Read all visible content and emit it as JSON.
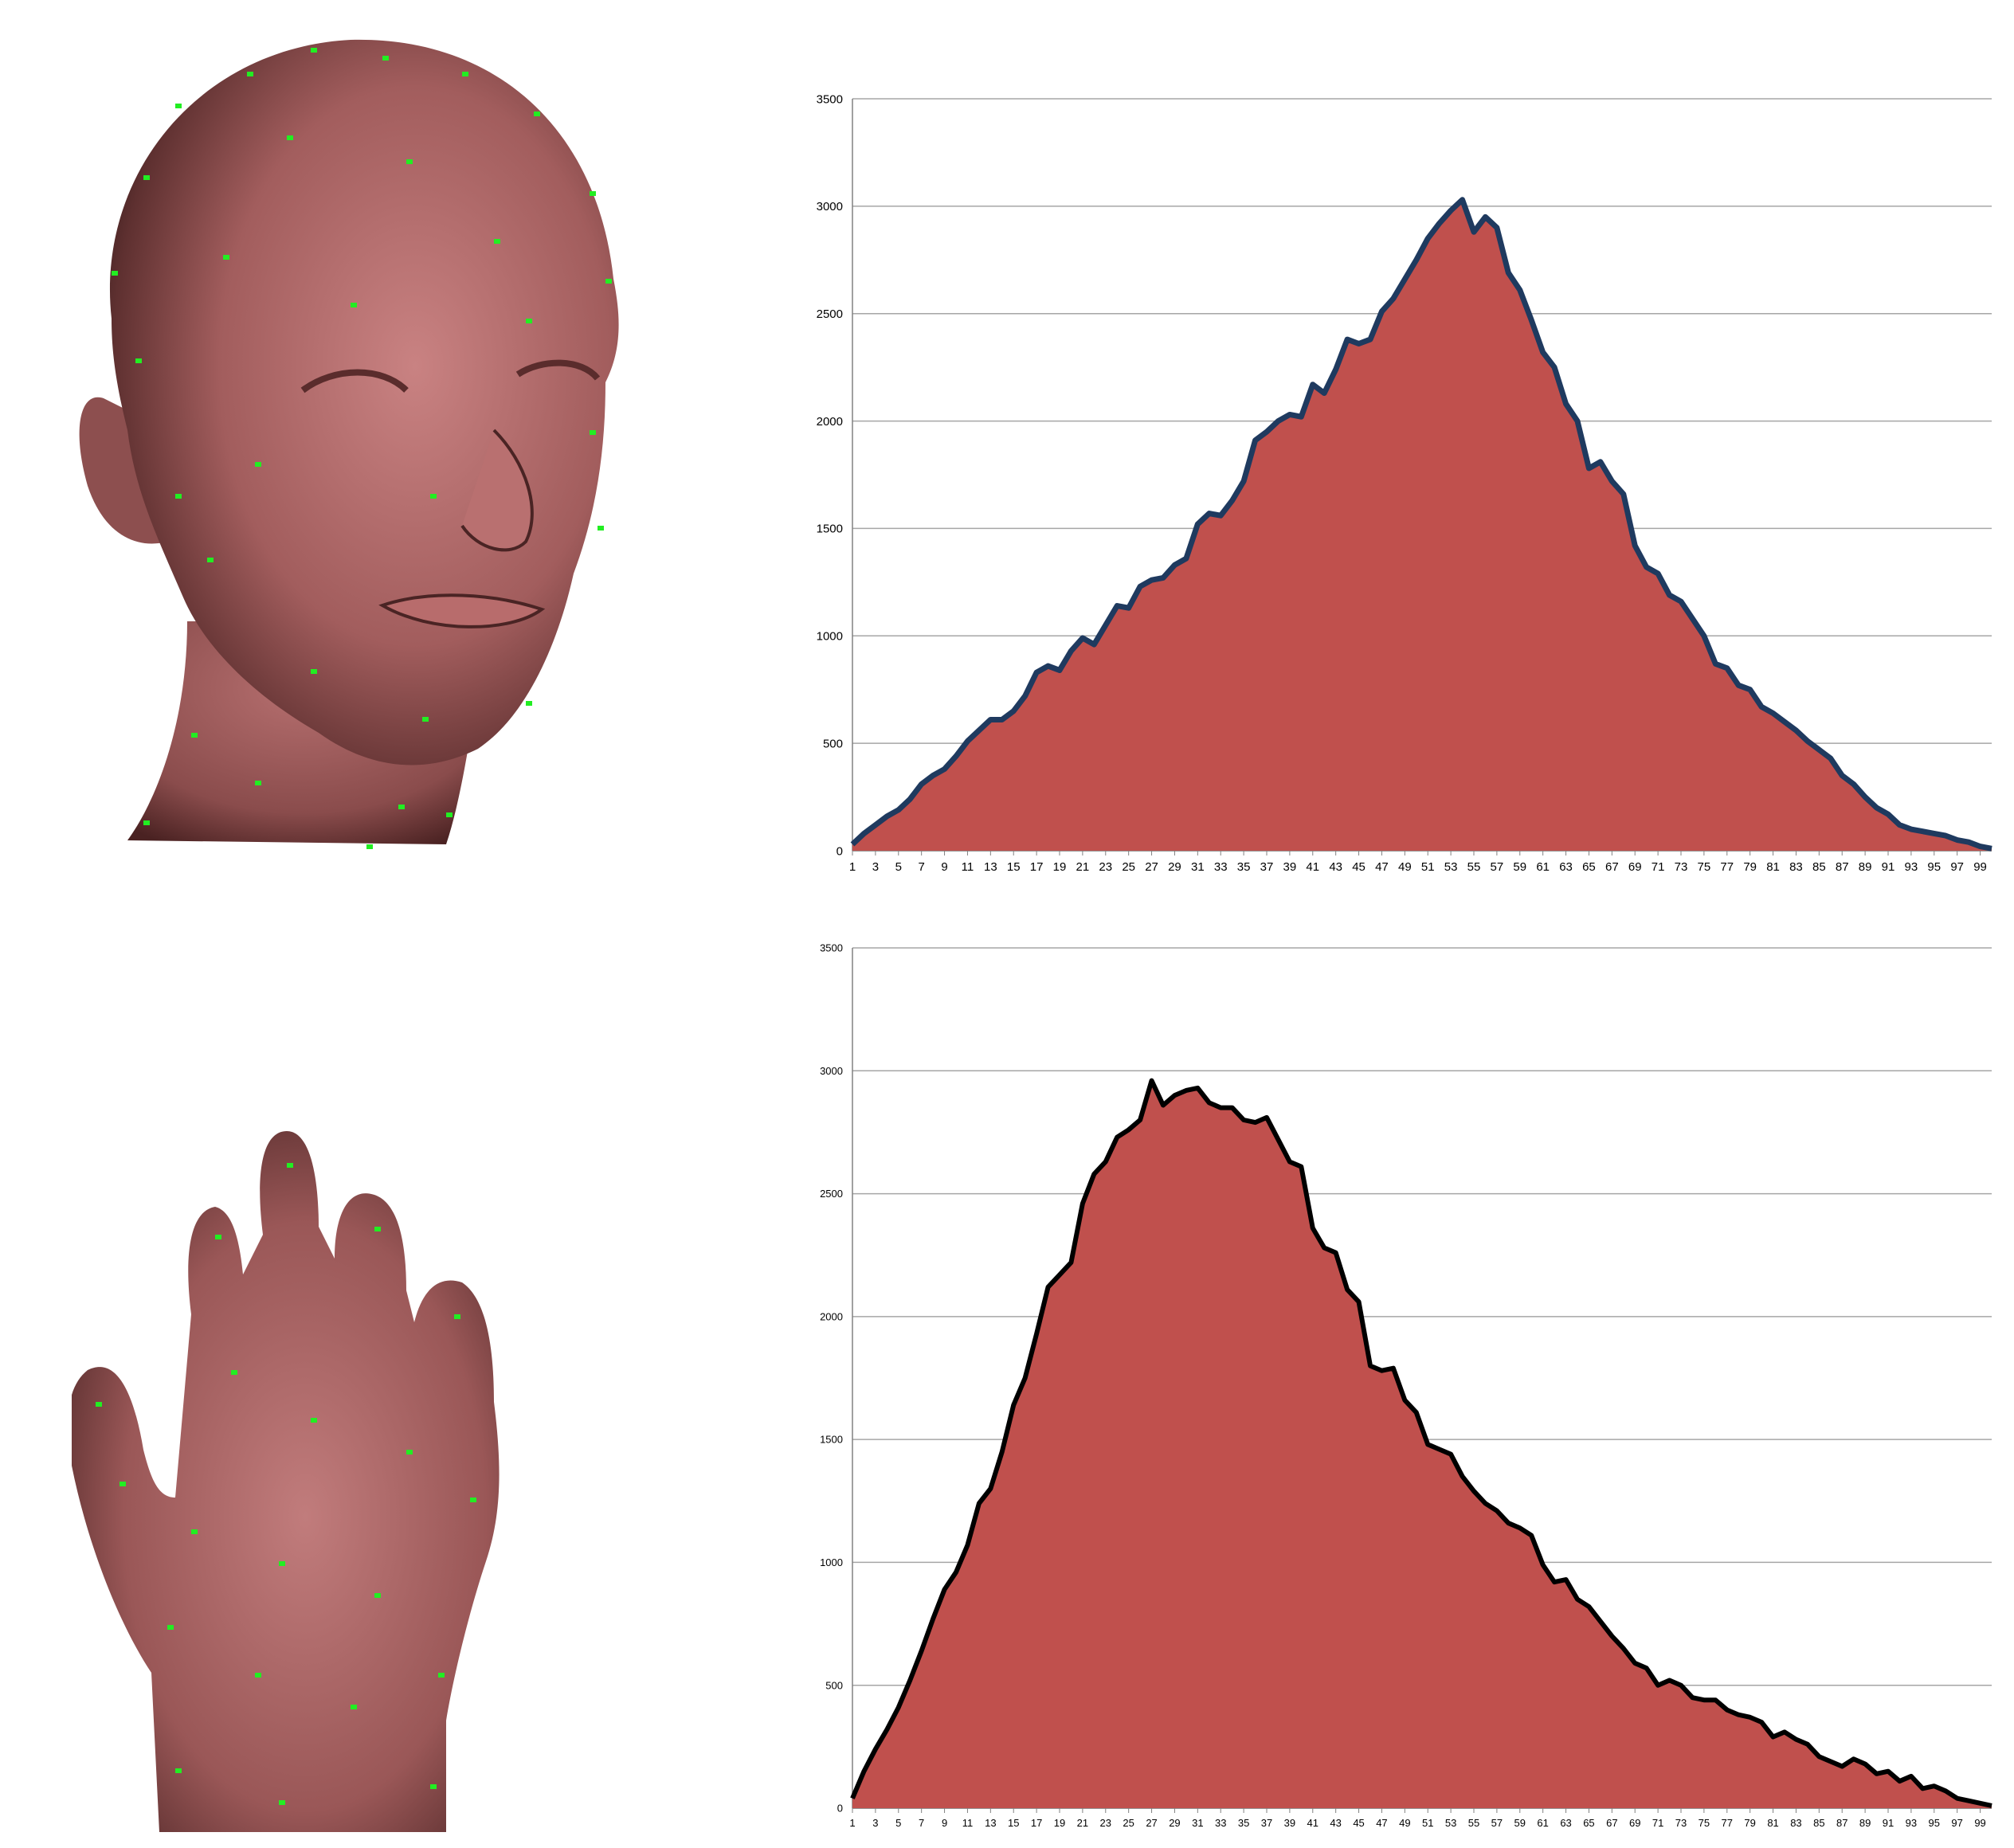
{
  "colors": {
    "area_fill": "#c0504d",
    "chart1_line": "#1f3a5f",
    "chart2_line": "#000000",
    "skin": "#b06a6a",
    "vertex_markers": "#22ee22",
    "gridline": "#a6a6a6"
  },
  "renders": [
    {
      "name": "head-mesh-render",
      "description_icon": "head-3d-model-icon"
    },
    {
      "name": "hand-mesh-render",
      "description_icon": "hand-3d-model-icon"
    }
  ],
  "chart_data": [
    {
      "type": "area",
      "title": "",
      "xlabel": "",
      "ylabel": "",
      "ylim": [
        0,
        3500
      ],
      "yticks": [
        "0",
        "500",
        "1000",
        "1500",
        "2000",
        "2500",
        "3000",
        "3500"
      ],
      "x": [
        1,
        2,
        3,
        4,
        5,
        6,
        7,
        8,
        9,
        10,
        11,
        12,
        13,
        14,
        15,
        16,
        17,
        18,
        19,
        20,
        21,
        22,
        23,
        24,
        25,
        26,
        27,
        28,
        29,
        30,
        31,
        32,
        33,
        34,
        35,
        36,
        37,
        38,
        39,
        40,
        41,
        42,
        43,
        44,
        45,
        46,
        47,
        48,
        49,
        50,
        51,
        52,
        53,
        54,
        55,
        56,
        57,
        58,
        59,
        60,
        61,
        62,
        63,
        64,
        65,
        66,
        67,
        68,
        69,
        70,
        71,
        72,
        73,
        74,
        75,
        76,
        77,
        78,
        79,
        80,
        81,
        82,
        83,
        84,
        85,
        86,
        87,
        88,
        89,
        90,
        91,
        92,
        93,
        94,
        95,
        96,
        97,
        98,
        99,
        100
      ],
      "xticks_shown": [
        1,
        3,
        5,
        7,
        9,
        11,
        13,
        15,
        17,
        19,
        21,
        23,
        25,
        27,
        29,
        31,
        33,
        35,
        37,
        39,
        41,
        43,
        45,
        47,
        49,
        51,
        53,
        55,
        57,
        59,
        61,
        63,
        65,
        67,
        69,
        71,
        73,
        75,
        77,
        79,
        81,
        83,
        85,
        87,
        89,
        91,
        93,
        95,
        97,
        99
      ],
      "values": [
        30,
        80,
        120,
        160,
        190,
        240,
        310,
        350,
        380,
        440,
        510,
        560,
        610,
        610,
        650,
        720,
        830,
        860,
        840,
        930,
        990,
        960,
        1050,
        1140,
        1130,
        1230,
        1260,
        1270,
        1330,
        1360,
        1520,
        1570,
        1560,
        1630,
        1720,
        1910,
        1950,
        2000,
        2030,
        2020,
        2170,
        2130,
        2240,
        2380,
        2360,
        2380,
        2510,
        2570,
        2660,
        2750,
        2850,
        2920,
        2980,
        3030,
        2880,
        2950,
        2900,
        2690,
        2610,
        2470,
        2320,
        2250,
        2080,
        2000,
        1780,
        1810,
        1720,
        1660,
        1420,
        1320,
        1290,
        1190,
        1160,
        1080,
        1000,
        870,
        850,
        770,
        750,
        670,
        640,
        600,
        560,
        510,
        470,
        430,
        350,
        310,
        250,
        200,
        170,
        120,
        100,
        90,
        80,
        70,
        50,
        40,
        20,
        10
      ],
      "grid": true,
      "legend": "none"
    },
    {
      "type": "area",
      "title": "",
      "xlabel": "",
      "ylabel": "",
      "ylim": [
        0,
        3500
      ],
      "yticks": [
        "0",
        "500",
        "1000",
        "1500",
        "2000",
        "2500",
        "3000",
        "3500"
      ],
      "x": [
        1,
        2,
        3,
        4,
        5,
        6,
        7,
        8,
        9,
        10,
        11,
        12,
        13,
        14,
        15,
        16,
        17,
        18,
        19,
        20,
        21,
        22,
        23,
        24,
        25,
        26,
        27,
        28,
        29,
        30,
        31,
        32,
        33,
        34,
        35,
        36,
        37,
        38,
        39,
        40,
        41,
        42,
        43,
        44,
        45,
        46,
        47,
        48,
        49,
        50,
        51,
        52,
        53,
        54,
        55,
        56,
        57,
        58,
        59,
        60,
        61,
        62,
        63,
        64,
        65,
        66,
        67,
        68,
        69,
        70,
        71,
        72,
        73,
        74,
        75,
        76,
        77,
        78,
        79,
        80,
        81,
        82,
        83,
        84,
        85,
        86,
        87,
        88,
        89,
        90,
        91,
        92,
        93,
        94,
        95,
        96,
        97,
        98,
        99,
        100
      ],
      "xticks_shown": [
        1,
        3,
        5,
        7,
        9,
        11,
        13,
        15,
        17,
        19,
        21,
        23,
        25,
        27,
        29,
        31,
        33,
        35,
        37,
        39,
        41,
        43,
        45,
        47,
        49,
        51,
        53,
        55,
        57,
        59,
        61,
        63,
        65,
        67,
        69,
        71,
        73,
        75,
        77,
        79,
        81,
        83,
        85,
        87,
        89,
        91,
        93,
        95,
        97,
        99
      ],
      "values": [
        40,
        150,
        240,
        320,
        410,
        520,
        640,
        770,
        890,
        960,
        1070,
        1240,
        1300,
        1450,
        1640,
        1750,
        1930,
        2120,
        2170,
        2220,
        2460,
        2580,
        2630,
        2730,
        2760,
        2800,
        2960,
        2860,
        2900,
        2920,
        2930,
        2870,
        2850,
        2850,
        2800,
        2790,
        2810,
        2720,
        2630,
        2610,
        2360,
        2280,
        2260,
        2110,
        2060,
        1800,
        1780,
        1790,
        1660,
        1610,
        1480,
        1460,
        1440,
        1350,
        1290,
        1240,
        1210,
        1160,
        1140,
        1110,
        990,
        920,
        930,
        850,
        820,
        760,
        700,
        650,
        590,
        570,
        500,
        520,
        500,
        450,
        440,
        440,
        400,
        380,
        370,
        350,
        290,
        310,
        280,
        260,
        210,
        190,
        170,
        200,
        180,
        140,
        150,
        110,
        130,
        80,
        90,
        70,
        40,
        30,
        20,
        10
      ],
      "grid": true,
      "legend": "none"
    }
  ]
}
